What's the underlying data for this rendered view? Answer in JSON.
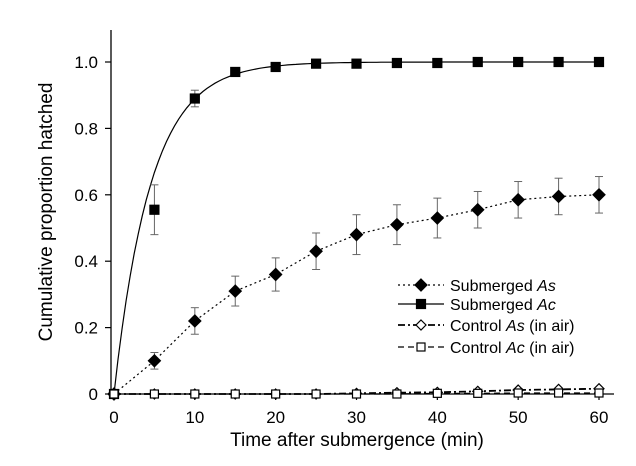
{
  "chart_data": {
    "type": "line",
    "xlabel": "Time after submergence (min)",
    "ylabel": "Cumulative proportion hatched",
    "xlim": [
      0,
      60
    ],
    "ylim": [
      0,
      1.0
    ],
    "xticks": [
      0,
      10,
      20,
      30,
      40,
      50,
      60
    ],
    "yticks": [
      0,
      0.2,
      0.4,
      0.6,
      0.8,
      1.0
    ],
    "ytick_labels": [
      "0",
      "0.2",
      "0.4",
      "0.6",
      "0.8",
      "1.0"
    ],
    "grid": false,
    "legend_position": "lower-right",
    "x": [
      0,
      5,
      10,
      15,
      20,
      25,
      30,
      35,
      40,
      45,
      50,
      55,
      60
    ],
    "series": [
      {
        "name_parts": [
          "Submerged ",
          "As",
          ""
        ],
        "marker": "filled-diamond",
        "line_style": "dotted",
        "values": [
          0,
          0.1,
          0.22,
          0.31,
          0.36,
          0.43,
          0.48,
          0.51,
          0.53,
          0.555,
          0.585,
          0.595,
          0.6
        ],
        "errors": [
          0,
          0.025,
          0.04,
          0.045,
          0.05,
          0.055,
          0.06,
          0.06,
          0.06,
          0.055,
          0.055,
          0.055,
          0.055
        ]
      },
      {
        "name_parts": [
          "Submerged ",
          "Ac",
          ""
        ],
        "marker": "filled-square",
        "line_style": "solid",
        "values": [
          0,
          0.555,
          0.89,
          0.97,
          0.985,
          0.995,
          0.995,
          0.997,
          0.997,
          1.0,
          1.0,
          1.0,
          1.0
        ],
        "errors": [
          0,
          0.075,
          0.025,
          0,
          0,
          0,
          0,
          0,
          0,
          0,
          0,
          0,
          0
        ],
        "fit_curve": true
      },
      {
        "name_parts": [
          "Control ",
          "As",
          " (in air)"
        ],
        "marker": "open-diamond",
        "line_style": "dash-dot",
        "values": [
          0,
          0,
          0,
          0,
          0,
          0,
          0.002,
          0.004,
          0.005,
          0.008,
          0.012,
          0.014,
          0.016
        ],
        "errors": [
          0,
          0,
          0,
          0,
          0,
          0,
          0,
          0,
          0,
          0,
          0,
          0,
          0
        ]
      },
      {
        "name_parts": [
          "Control ",
          "Ac",
          " (in air)"
        ],
        "marker": "open-square",
        "line_style": "dashed",
        "values": [
          0,
          0,
          0,
          0,
          0,
          0,
          0,
          0,
          0.002,
          0.002,
          0.003,
          0.003,
          0.003
        ],
        "errors": [
          0,
          0,
          0,
          0,
          0,
          0,
          0,
          0,
          0,
          0,
          0,
          0,
          0
        ]
      }
    ]
  }
}
